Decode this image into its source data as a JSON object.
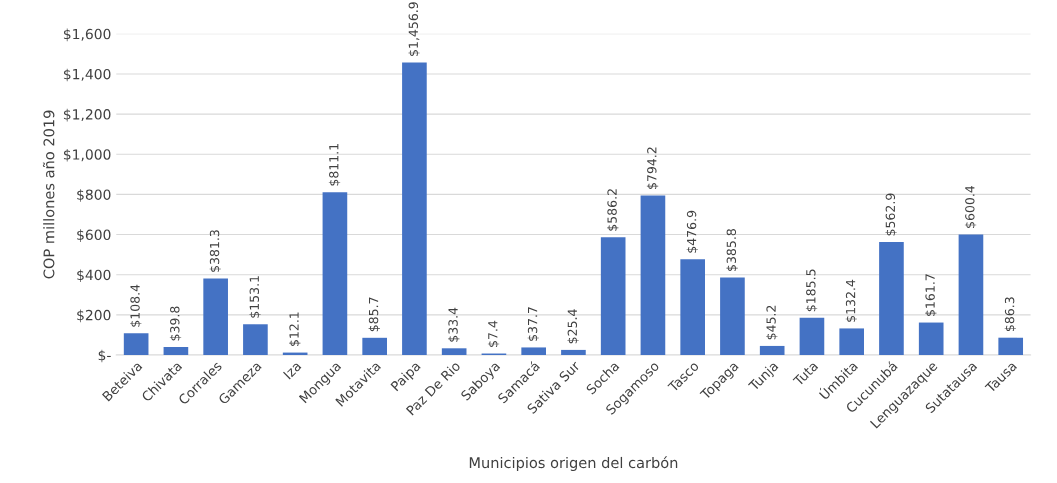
{
  "chart_data": {
    "type": "bar",
    "xlabel": "Municipios origen del carbón",
    "ylabel": "COP millones año 2019",
    "categories": [
      "Beteiva",
      "Chivata",
      "Corrales",
      "Gameza",
      "Iza",
      "Mongua",
      "Motavita",
      "Paipa",
      "Paz De Rio",
      "Saboya",
      "Samacá",
      "Sativa Sur",
      "Socha",
      "Sogamoso",
      "Tasco",
      "Topaga",
      "Tunja",
      "Tuta",
      "Úmbita",
      "Cucunubá",
      "Lenguazaque",
      "Sutatausa",
      "Tausa"
    ],
    "values": [
      108.4,
      39.8,
      381.3,
      153.1,
      12.1,
      811.1,
      85.7,
      1456.9,
      33.4,
      7.4,
      37.7,
      25.4,
      586.2,
      794.2,
      476.9,
      385.8,
      45.2,
      185.5,
      132.4,
      562.9,
      161.7,
      600.4,
      86.3
    ],
    "value_labels": [
      "$108.4",
      "$39.8",
      "$381.3",
      "$153.1",
      "$12.1",
      "$811.1",
      "$85.7",
      "$1,456.9",
      "$33.4",
      "$7.4",
      "$37.7",
      "$25.4",
      "$586.2",
      "$794.2",
      "$476.9",
      "$385.8",
      "$45.2",
      "$185.5",
      "$132.4",
      "$562.9",
      "$161.7",
      "$600.4",
      "$86.3"
    ],
    "color": "#4472c4",
    "ylim": [
      0,
      1600
    ],
    "yticks": [
      {
        "value": 0,
        "label": "$-"
      },
      {
        "value": 200,
        "label": "$200"
      },
      {
        "value": 400,
        "label": "$400"
      },
      {
        "value": 600,
        "label": "$600"
      },
      {
        "value": 800,
        "label": "$800"
      },
      {
        "value": 1000,
        "label": "$1,000"
      },
      {
        "value": 1200,
        "label": "$1,200"
      },
      {
        "value": 1400,
        "label": "$1,400"
      },
      {
        "value": 1600,
        "label": "$1,600"
      }
    ],
    "grid": "y",
    "legend": false
  }
}
